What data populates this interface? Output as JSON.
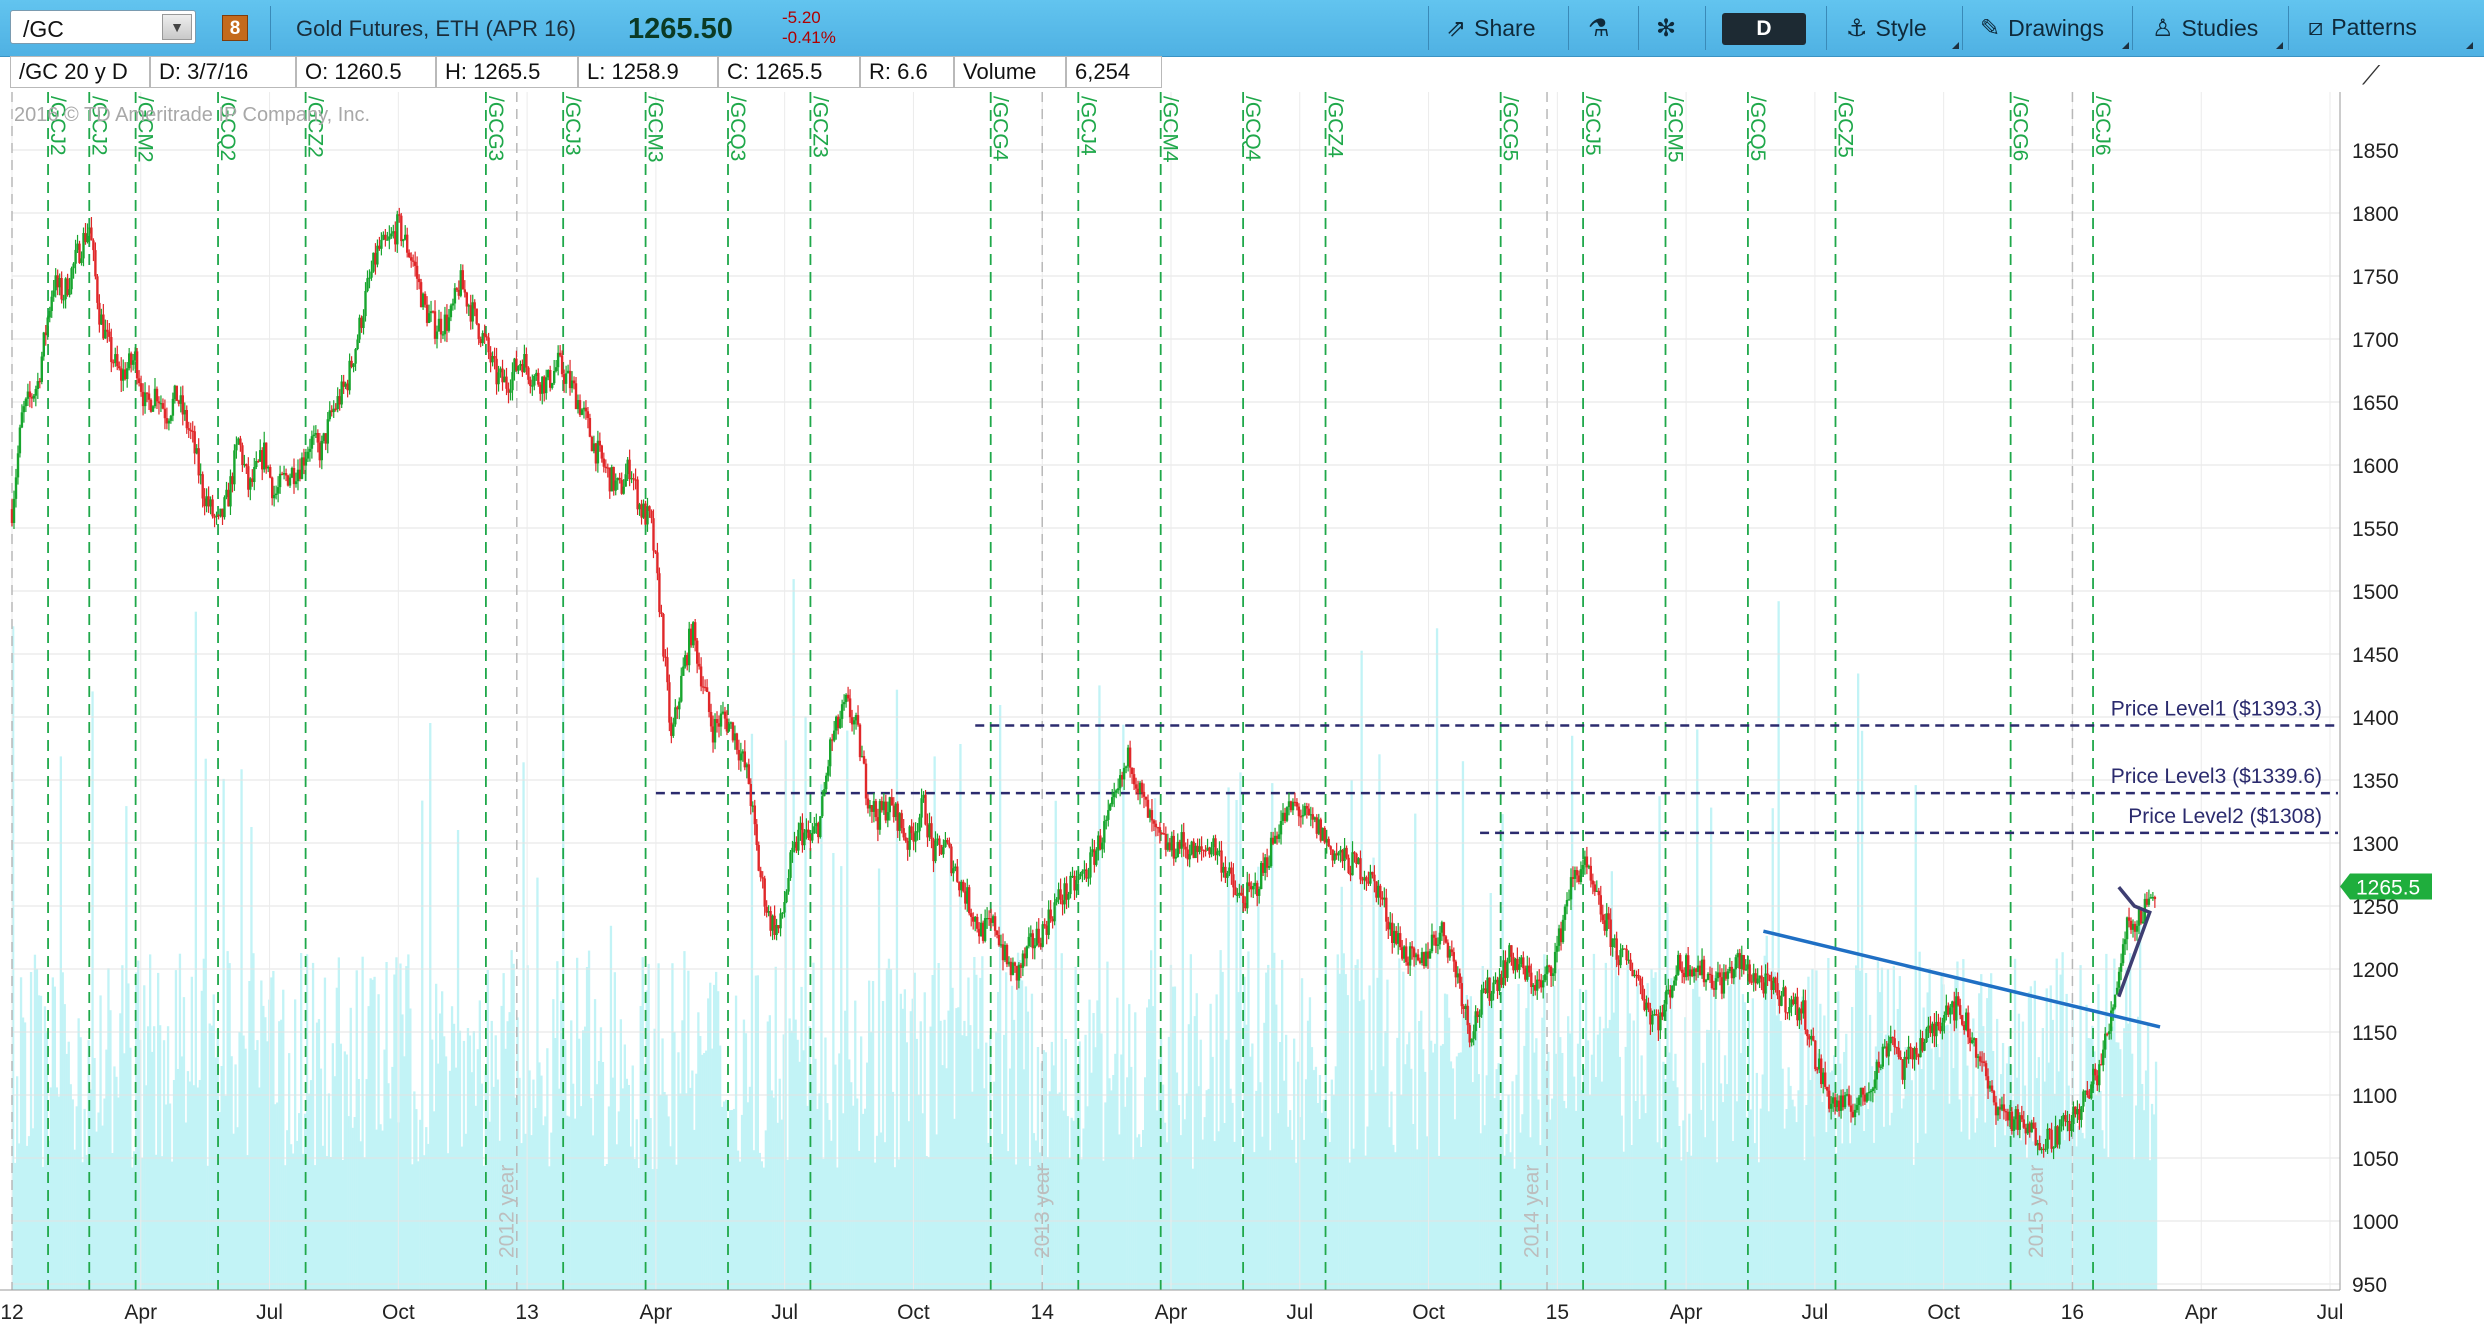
{
  "toolbar": {
    "symbol": "/GC",
    "dropdown_glyph": "▼",
    "link_badge": "8",
    "description": "Gold Futures, ETH (APR 16)",
    "last_price": "1265.50",
    "net_change": "-5.20",
    "pct_change": "-0.41%",
    "share_label": "Share",
    "period_label": "D",
    "style_label": "Style",
    "drawings_label": "Drawings",
    "studies_label": "Studies",
    "patterns_label": "Patterns",
    "icons": {
      "share": "share-icon",
      "beaker": "flask-icon",
      "settings": "gear-icon",
      "style": "style-icon",
      "drawings": "pencil-icon",
      "studies": "studies-icon",
      "patterns": "patterns-icon"
    }
  },
  "infobar": {
    "chart_id": "/GC 20 y D",
    "date": "D: 3/7/16",
    "open": "O: 1260.5",
    "high": "H: 1265.5",
    "low": "L: 1258.9",
    "close": "C: 1265.5",
    "range": "R: 6.6",
    "volume_label": "Volume",
    "volume_value": "6,254"
  },
  "colors": {
    "toolbar": "#55b8e8",
    "up_candle": "#18a52e",
    "down_candle": "#e0282a",
    "volume": "#c2f3f6",
    "contract_marker": "#1fa84a",
    "price_level": "#2b2b6e",
    "trendline": "#1f6fc4",
    "triangle": "#3e3e72",
    "price_badge": "#1fae3d"
  },
  "chart_data": {
    "type": "line",
    "title": "Gold Futures, ETH (APR 16)",
    "xlabel": "",
    "ylabel": "",
    "ylim": [
      950,
      1860
    ],
    "copyright": "2016 © TD Ameritrade IP Company, Inc.",
    "grid": true,
    "current_value": "1265.5",
    "y_ticks": [
      "1850",
      "1800",
      "1750",
      "1700",
      "1650",
      "1600",
      "1550",
      "1500",
      "1450",
      "1400",
      "1350",
      "1300",
      "1250",
      "1200",
      "1150",
      "1100",
      "1050",
      "1000",
      "950"
    ],
    "x_ticks": [
      {
        "label": "12",
        "t": 2012.0
      },
      {
        "label": "Apr",
        "t": 2012.25
      },
      {
        "label": "Jul",
        "t": 2012.5
      },
      {
        "label": "Oct",
        "t": 2012.75
      },
      {
        "label": "13",
        "t": 2013.0
      },
      {
        "label": "Apr",
        "t": 2013.25
      },
      {
        "label": "Jul",
        "t": 2013.5
      },
      {
        "label": "Oct",
        "t": 2013.75
      },
      {
        "label": "14",
        "t": 2014.0
      },
      {
        "label": "Apr",
        "t": 2014.25
      },
      {
        "label": "Jul",
        "t": 2014.5
      },
      {
        "label": "Oct",
        "t": 2014.75
      },
      {
        "label": "15",
        "t": 2015.0
      },
      {
        "label": "Apr",
        "t": 2015.25
      },
      {
        "label": "Jul",
        "t": 2015.5
      },
      {
        "label": "Oct",
        "t": 2015.75
      },
      {
        "label": "16",
        "t": 2016.0
      },
      {
        "label": "Apr",
        "t": 2016.25
      },
      {
        "label": "Jul",
        "t": 2016.5
      }
    ],
    "year_labels": [
      {
        "label": "2012 year",
        "t": 2012.95
      },
      {
        "label": "2013 year",
        "t": 2013.99
      },
      {
        "label": "2014 year",
        "t": 2014.94
      },
      {
        "label": "2015 year",
        "t": 2015.92
      }
    ],
    "contract_markers": [
      {
        "label": "/GCJ2",
        "t": 2012.07
      },
      {
        "label": "/GCJ2",
        "t": 2012.15
      },
      {
        "label": "/GCM2",
        "t": 2012.24
      },
      {
        "label": "/GCQ2",
        "t": 2012.4
      },
      {
        "label": "/GCZ2",
        "t": 2012.57
      },
      {
        "label": "/GCG3",
        "t": 2012.92
      },
      {
        "label": "/GCJ3",
        "t": 2013.07
      },
      {
        "label": "/GCM3",
        "t": 2013.23
      },
      {
        "label": "/GCQ3",
        "t": 2013.39
      },
      {
        "label": "/GCZ3",
        "t": 2013.55
      },
      {
        "label": "/GCG4",
        "t": 2013.9
      },
      {
        "label": "/GCJ4",
        "t": 2014.07
      },
      {
        "label": "/GCM4",
        "t": 2014.23
      },
      {
        "label": "/GCQ4",
        "t": 2014.39
      },
      {
        "label": "/GCZ4",
        "t": 2014.55
      },
      {
        "label": "/GCG5",
        "t": 2014.89
      },
      {
        "label": "/GCJ5",
        "t": 2015.05
      },
      {
        "label": "/GCM5",
        "t": 2015.21
      },
      {
        "label": "/GCQ5",
        "t": 2015.37
      },
      {
        "label": "/GCZ5",
        "t": 2015.54
      },
      {
        "label": "/GCG6",
        "t": 2015.88
      },
      {
        "label": "/GCJ6",
        "t": 2016.04
      }
    ],
    "gray_markers": [
      2012.0,
      2012.98,
      2014.0,
      2014.98,
      2016.0
    ],
    "price_levels": [
      {
        "name": "Price Level1",
        "label": "Price Level1 ($1393.3)",
        "value": 1393.3,
        "from": 2013.87
      },
      {
        "name": "Price Level3",
        "label": "Price Level3 ($1339.6)",
        "value": 1339.6,
        "from": 2013.25
      },
      {
        "name": "Price Level2",
        "label": "Price Level2 ($1308)",
        "value": 1308,
        "from": 2014.85
      }
    ],
    "trendline": {
      "t1": 2015.4,
      "v1": 1230,
      "t2": 2016.17,
      "v2": 1154
    },
    "triangle": [
      [
        2016.09,
        1265
      ],
      [
        2016.12,
        1250
      ],
      [
        2016.15,
        1245
      ],
      [
        2016.09,
        1178
      ]
    ],
    "series": [
      {
        "name": "",
        "points": [
          [
            2012.0,
            1565
          ],
          [
            2012.02,
            1640
          ],
          [
            2012.05,
            1665
          ],
          [
            2012.08,
            1745
          ],
          [
            2012.1,
            1735
          ],
          [
            2012.13,
            1770
          ],
          [
            2012.15,
            1790
          ],
          [
            2012.17,
            1720
          ],
          [
            2012.19,
            1690
          ],
          [
            2012.21,
            1670
          ],
          [
            2012.24,
            1685
          ],
          [
            2012.26,
            1645
          ],
          [
            2012.28,
            1660
          ],
          [
            2012.3,
            1640
          ],
          [
            2012.32,
            1655
          ],
          [
            2012.35,
            1620
          ],
          [
            2012.37,
            1580
          ],
          [
            2012.4,
            1550
          ],
          [
            2012.42,
            1575
          ],
          [
            2012.44,
            1620
          ],
          [
            2012.46,
            1580
          ],
          [
            2012.49,
            1610
          ],
          [
            2012.51,
            1575
          ],
          [
            2012.53,
            1590
          ],
          [
            2012.56,
            1600
          ],
          [
            2012.58,
            1620
          ],
          [
            2012.6,
            1610
          ],
          [
            2012.62,
            1640
          ],
          [
            2012.65,
            1665
          ],
          [
            2012.67,
            1700
          ],
          [
            2012.69,
            1740
          ],
          [
            2012.71,
            1770
          ],
          [
            2012.73,
            1775
          ],
          [
            2012.75,
            1790
          ],
          [
            2012.78,
            1760
          ],
          [
            2012.8,
            1725
          ],
          [
            2012.82,
            1710
          ],
          [
            2012.85,
            1715
          ],
          [
            2012.87,
            1745
          ],
          [
            2012.89,
            1725
          ],
          [
            2012.92,
            1695
          ],
          [
            2012.94,
            1670
          ],
          [
            2012.96,
            1665
          ],
          [
            2012.99,
            1685
          ],
          [
            2013.01,
            1670
          ],
          [
            2013.04,
            1665
          ],
          [
            2013.06,
            1680
          ],
          [
            2013.09,
            1660
          ],
          [
            2013.11,
            1640
          ],
          [
            2013.13,
            1615
          ],
          [
            2013.16,
            1590
          ],
          [
            2013.18,
            1580
          ],
          [
            2013.2,
            1600
          ],
          [
            2013.22,
            1565
          ],
          [
            2013.24,
            1555
          ],
          [
            2013.26,
            1480
          ],
          [
            2013.28,
            1380
          ],
          [
            2013.3,
            1430
          ],
          [
            2013.32,
            1470
          ],
          [
            2013.34,
            1430
          ],
          [
            2013.36,
            1390
          ],
          [
            2013.38,
            1400
          ],
          [
            2013.4,
            1390
          ],
          [
            2013.43,
            1350
          ],
          [
            2013.45,
            1280
          ],
          [
            2013.47,
            1240
          ],
          [
            2013.49,
            1230
          ],
          [
            2013.51,
            1280
          ],
          [
            2013.53,
            1310
          ],
          [
            2013.55,
            1300
          ],
          [
            2013.57,
            1320
          ],
          [
            2013.59,
            1380
          ],
          [
            2013.62,
            1410
          ],
          [
            2013.64,
            1390
          ],
          [
            2013.66,
            1340
          ],
          [
            2013.68,
            1320
          ],
          [
            2013.7,
            1330
          ],
          [
            2013.72,
            1320
          ],
          [
            2013.74,
            1300
          ],
          [
            2013.77,
            1330
          ],
          [
            2013.79,
            1290
          ],
          [
            2013.81,
            1300
          ],
          [
            2013.84,
            1270
          ],
          [
            2013.86,
            1250
          ],
          [
            2013.88,
            1230
          ],
          [
            2013.91,
            1235
          ],
          [
            2013.93,
            1205
          ],
          [
            2013.95,
            1195
          ],
          [
            2013.98,
            1220
          ],
          [
            2014.0,
            1230
          ],
          [
            2014.03,
            1255
          ],
          [
            2014.06,
            1265
          ],
          [
            2014.09,
            1280
          ],
          [
            2014.12,
            1310
          ],
          [
            2014.14,
            1330
          ],
          [
            2014.17,
            1370
          ],
          [
            2014.19,
            1340
          ],
          [
            2014.22,
            1305
          ],
          [
            2014.25,
            1295
          ],
          [
            2014.27,
            1300
          ],
          [
            2014.3,
            1290
          ],
          [
            2014.33,
            1300
          ],
          [
            2014.35,
            1285
          ],
          [
            2014.38,
            1255
          ],
          [
            2014.41,
            1260
          ],
          [
            2014.43,
            1280
          ],
          [
            2014.46,
            1315
          ],
          [
            2014.49,
            1330
          ],
          [
            2014.51,
            1320
          ],
          [
            2014.54,
            1310
          ],
          [
            2014.56,
            1295
          ],
          [
            2014.59,
            1285
          ],
          [
            2014.62,
            1280
          ],
          [
            2014.65,
            1265
          ],
          [
            2014.68,
            1230
          ],
          [
            2014.7,
            1215
          ],
          [
            2014.73,
            1200
          ],
          [
            2014.76,
            1225
          ],
          [
            2014.78,
            1230
          ],
          [
            2014.81,
            1190
          ],
          [
            2014.83,
            1150
          ],
          [
            2014.86,
            1180
          ],
          [
            2014.88,
            1190
          ],
          [
            2014.91,
            1210
          ],
          [
            2014.94,
            1195
          ],
          [
            2014.97,
            1185
          ],
          [
            2015.0,
            1215
          ],
          [
            2015.02,
            1260
          ],
          [
            2015.05,
            1285
          ],
          [
            2015.07,
            1260
          ],
          [
            2015.1,
            1230
          ],
          [
            2015.12,
            1210
          ],
          [
            2015.15,
            1200
          ],
          [
            2015.18,
            1165
          ],
          [
            2015.2,
            1160
          ],
          [
            2015.23,
            1200
          ],
          [
            2015.26,
            1205
          ],
          [
            2015.29,
            1195
          ],
          [
            2015.32,
            1190
          ],
          [
            2015.35,
            1205
          ],
          [
            2015.38,
            1195
          ],
          [
            2015.41,
            1185
          ],
          [
            2015.43,
            1180
          ],
          [
            2015.46,
            1170
          ],
          [
            2015.48,
            1165
          ],
          [
            2015.5,
            1130
          ],
          [
            2015.53,
            1095
          ],
          [
            2015.56,
            1090
          ],
          [
            2015.59,
            1095
          ],
          [
            2015.62,
            1120
          ],
          [
            2015.65,
            1150
          ],
          [
            2015.67,
            1120
          ],
          [
            2015.7,
            1140
          ],
          [
            2015.73,
            1150
          ],
          [
            2015.76,
            1175
          ],
          [
            2015.79,
            1160
          ],
          [
            2015.82,
            1130
          ],
          [
            2015.84,
            1100
          ],
          [
            2015.87,
            1085
          ],
          [
            2015.9,
            1075
          ],
          [
            2015.92,
            1070
          ],
          [
            2015.95,
            1065
          ],
          [
            2015.97,
            1070
          ],
          [
            2016.0,
            1080
          ],
          [
            2016.03,
            1100
          ],
          [
            2016.05,
            1120
          ],
          [
            2016.07,
            1150
          ],
          [
            2016.09,
            1200
          ],
          [
            2016.11,
            1245
          ],
          [
            2016.12,
            1230
          ],
          [
            2016.14,
            1250
          ],
          [
            2016.16,
            1265
          ]
        ]
      }
    ]
  }
}
